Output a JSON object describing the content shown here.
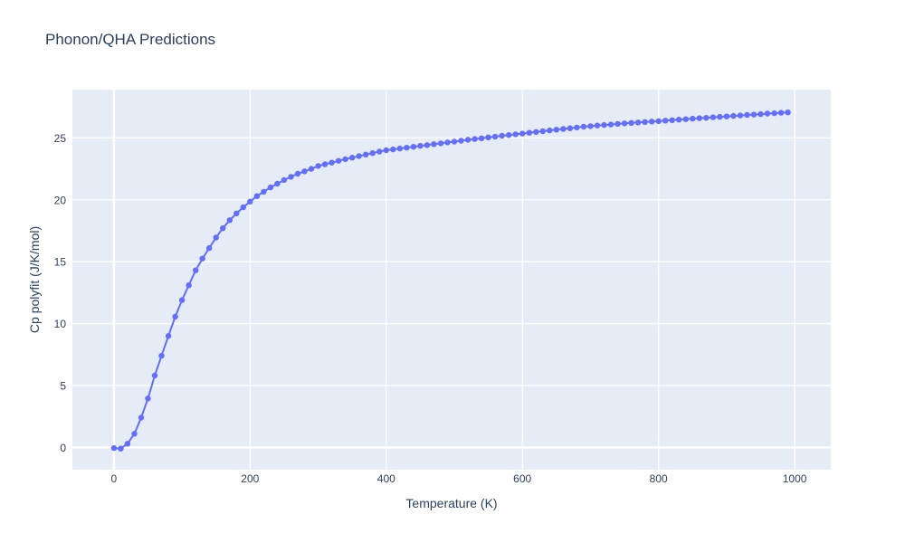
{
  "chart_data": {
    "type": "line",
    "mode": "lines+markers",
    "title": "Phonon/QHA Predictions",
    "xlabel": "Temperature (K)",
    "ylabel": "Cp polyfit (J/K/mol)",
    "xlim": [
      -61,
      1053
    ],
    "ylim": [
      -1.8,
      28.9
    ],
    "x_ticks": [
      0,
      200,
      400,
      600,
      800,
      1000
    ],
    "y_ticks": [
      0,
      5,
      10,
      15,
      20,
      25
    ],
    "grid": true,
    "legend": false,
    "colors": {
      "line": "#636efa",
      "marker": "#636efa",
      "plot_background": "#e5ecf6",
      "grid": "#ffffff",
      "text": "#2a3f5f",
      "paper_background": "#ffffff"
    },
    "x": [
      0,
      10,
      20,
      30,
      40,
      50,
      60,
      70,
      80,
      90,
      100,
      110,
      120,
      130,
      140,
      150,
      160,
      170,
      180,
      190,
      200,
      210,
      220,
      230,
      240,
      250,
      260,
      270,
      280,
      290,
      300,
      310,
      320,
      330,
      340,
      350,
      360,
      370,
      380,
      390,
      400,
      410,
      420,
      430,
      440,
      450,
      460,
      470,
      480,
      490,
      500,
      510,
      520,
      530,
      540,
      550,
      560,
      570,
      580,
      590,
      600,
      610,
      620,
      630,
      640,
      650,
      660,
      670,
      680,
      690,
      700,
      710,
      720,
      730,
      740,
      750,
      760,
      770,
      780,
      790,
      800,
      810,
      820,
      830,
      840,
      850,
      860,
      870,
      880,
      890,
      900,
      910,
      920,
      930,
      940,
      950,
      960,
      970,
      980,
      990
    ],
    "y": [
      -0.05,
      -0.1,
      0.3,
      1.1,
      2.4,
      3.95,
      5.8,
      7.4,
      9.0,
      10.55,
      11.9,
      13.1,
      14.3,
      15.25,
      16.1,
      16.95,
      17.7,
      18.35,
      18.9,
      19.4,
      19.85,
      20.3,
      20.65,
      21.0,
      21.3,
      21.6,
      21.85,
      22.1,
      22.3,
      22.5,
      22.73,
      22.87,
      23.0,
      23.15,
      23.28,
      23.4,
      23.53,
      23.65,
      23.77,
      23.89,
      24.0,
      24.07,
      24.14,
      24.21,
      24.28,
      24.35,
      24.42,
      24.49,
      24.56,
      24.63,
      24.7,
      24.77,
      24.84,
      24.91,
      24.97,
      25.04,
      25.1,
      25.17,
      25.23,
      25.29,
      25.35,
      25.41,
      25.48,
      25.54,
      25.6,
      25.66,
      25.72,
      25.78,
      25.84,
      25.9,
      25.95,
      26.0,
      26.04,
      26.08,
      26.13,
      26.17,
      26.21,
      26.25,
      26.28,
      26.32,
      26.35,
      26.39,
      26.43,
      26.47,
      26.51,
      26.55,
      26.59,
      26.62,
      26.66,
      26.7,
      26.73,
      26.77,
      26.81,
      26.85,
      26.88,
      26.92,
      26.96,
      26.99,
      27.03,
      27.06
    ]
  }
}
